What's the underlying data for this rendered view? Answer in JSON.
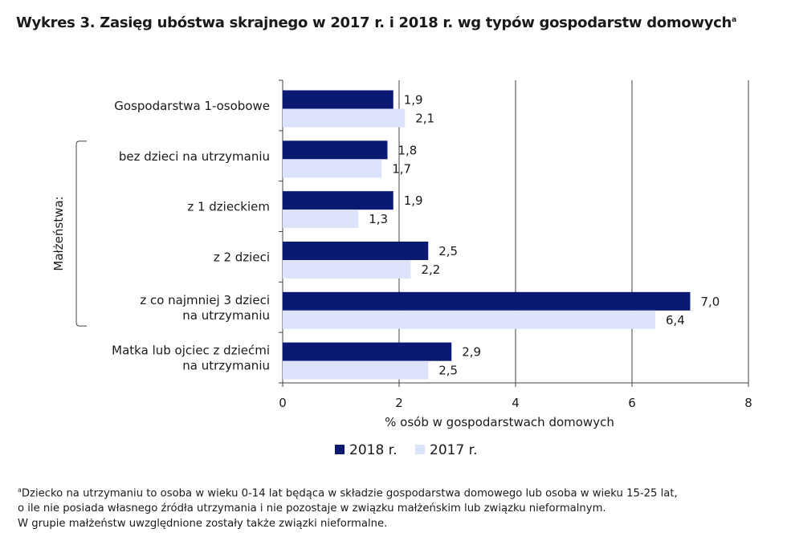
{
  "title": "Wykres 3. Zasięg ubóstwa skrajnego w 2017 r. i 2018 r. wg typów gospodarstw domowych",
  "title_sup": "a",
  "chart_data": {
    "type": "bar",
    "orientation": "horizontal",
    "categories": [
      [
        "Gospodarstwa 1-osobowe"
      ],
      [
        "bez dzieci na utrzymaniu"
      ],
      [
        "z 1 dzieckiem"
      ],
      [
        "z 2 dzieci"
      ],
      [
        "z co najmniej 3 dzieci",
        "na utrzymaniu"
      ],
      [
        "Matka lub ojciec z dziećmi",
        "na utrzymaniu"
      ]
    ],
    "series": [
      {
        "name": "2018 r.",
        "color": "#0a1a72",
        "values": [
          1.9,
          1.8,
          1.9,
          2.5,
          7.0,
          2.9
        ],
        "labels": [
          "1,9",
          "1,8",
          "1,9",
          "2,5",
          "7,0",
          "2,9"
        ]
      },
      {
        "name": "2017 r.",
        "color": "#dde3fa",
        "values": [
          2.1,
          1.7,
          1.3,
          2.2,
          6.4,
          2.5
        ],
        "labels": [
          "2,1",
          "1,7",
          "1,3",
          "2,2",
          "6,4",
          "2,5"
        ]
      }
    ],
    "xlim": [
      0,
      8
    ],
    "xticks": [
      0,
      2,
      4,
      6,
      8
    ],
    "xlabel": "% osób w gospodarstwach domowych",
    "group_label": "Małżeństwa:",
    "group_range": [
      1,
      4
    ],
    "grid": true,
    "legend_position": "bottom"
  },
  "footnote": {
    "sup": "a",
    "lines": [
      "Dziecko na utrzymaniu to osoba w wieku 0-14 lat będąca w składzie gospodarstwa domowego lub osoba w wieku 15-25 lat,",
      "o ile nie posiada własnego źródła utrzymania i nie pozostaje w związku małżeńskim lub związku nieformalnym.",
      "W grupie małżeństw uwzględnione zostały także związki nieformalne."
    ]
  }
}
